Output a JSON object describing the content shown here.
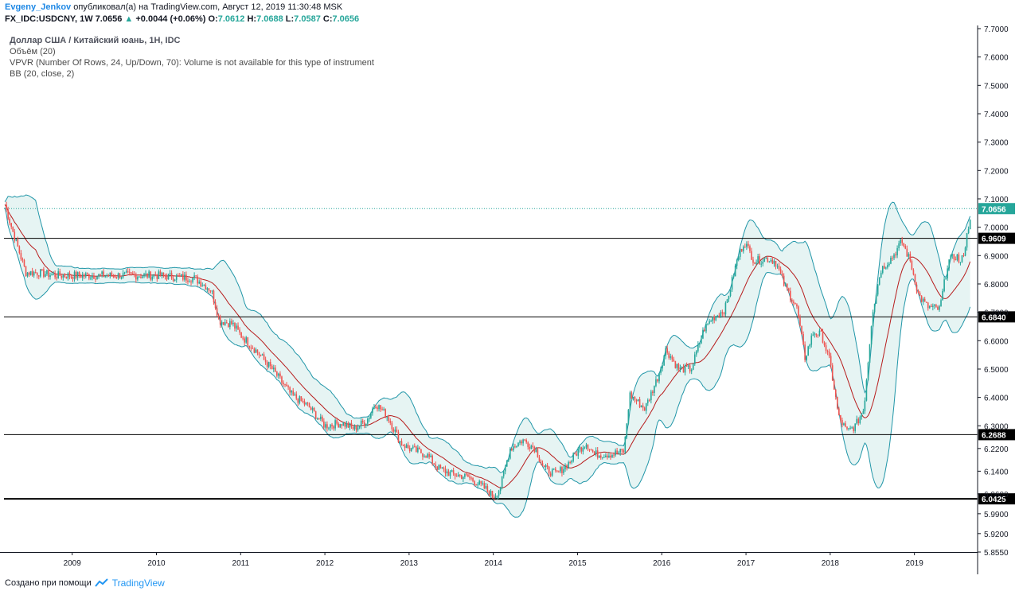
{
  "header": {
    "author": "Evgeny_Jenkov",
    "published_text": "опубликовал(а) на TradingView.com, Август 12, 2019 11:30:48 MSK",
    "symbol": "FX_IDC:USDCNY, 1W",
    "last": "7.0656",
    "change": "+0.0044 (+0.06%)",
    "o_label": "O:",
    "o": "7.0612",
    "h_label": "H:",
    "h": "7.0688",
    "l_label": "L:",
    "l": "7.0587",
    "c_label": "C:",
    "c": "7.0656"
  },
  "legend": {
    "title": "Доллар США / Китайский юань, 1H, IDC",
    "volume": "Объём (20)",
    "vpvr": "VPVR (Number Of Rows, 24, Up/Down, 70): Volume is not available for this type of instrument",
    "bb": "BB (20, close, 2)"
  },
  "footer": {
    "made_with": "Создано при помощи",
    "brand": "TradingView"
  },
  "colors": {
    "up": "#26a69a",
    "down": "#ef5350",
    "bb_band": "#2196a8",
    "basis": "#b71c1c",
    "fill": "#e6f4f3"
  },
  "chart_data": {
    "type": "candlestick",
    "y_axis_ticks": [
      "5.8550",
      "5.9200",
      "5.9900",
      "6.0600",
      "6.1400",
      "6.2200",
      "6.3000",
      "6.4000",
      "6.5000",
      "6.6000",
      "6.7000",
      "6.8000",
      "6.9000",
      "7.0000",
      "7.1000",
      "7.2000",
      "7.3000",
      "7.4000",
      "7.5000",
      "7.6000",
      "7.7000"
    ],
    "ylim": [
      5.855,
      7.7
    ],
    "x_ticks": [
      "2009",
      "2010",
      "2011",
      "2012",
      "2013",
      "2014",
      "2015",
      "2016",
      "2017",
      "2018",
      "2019"
    ],
    "xlim": [
      2008.19,
      2019.75
    ],
    "horizontal_levels": [
      {
        "value": 6.9609,
        "label": "6.9609"
      },
      {
        "value": 6.684,
        "label": "6.6840"
      },
      {
        "value": 6.2688,
        "label": "6.2688"
      },
      {
        "value": 6.0425,
        "label": "6.0425"
      }
    ],
    "last_price": {
      "value": 7.0656,
      "label": "7.0656"
    },
    "series": [
      {
        "name": "close",
        "points": [
          [
            2008.2,
            7.08
          ],
          [
            2008.3,
            6.98
          ],
          [
            2008.45,
            6.84
          ],
          [
            2008.6,
            6.84
          ],
          [
            2008.8,
            6.83
          ],
          [
            2009.0,
            6.83
          ],
          [
            2009.5,
            6.83
          ],
          [
            2010.0,
            6.83
          ],
          [
            2010.45,
            6.82
          ],
          [
            2010.65,
            6.78
          ],
          [
            2010.75,
            6.67
          ],
          [
            2010.9,
            6.66
          ],
          [
            2011.0,
            6.62
          ],
          [
            2011.2,
            6.56
          ],
          [
            2011.4,
            6.49
          ],
          [
            2011.6,
            6.41
          ],
          [
            2011.8,
            6.37
          ],
          [
            2012.0,
            6.3
          ],
          [
            2012.2,
            6.31
          ],
          [
            2012.35,
            6.29
          ],
          [
            2012.5,
            6.32
          ],
          [
            2012.6,
            6.38
          ],
          [
            2012.75,
            6.33
          ],
          [
            2012.9,
            6.24
          ],
          [
            2013.0,
            6.22
          ],
          [
            2013.2,
            6.2
          ],
          [
            2013.35,
            6.15
          ],
          [
            2013.5,
            6.13
          ],
          [
            2013.7,
            6.12
          ],
          [
            2013.9,
            6.08
          ],
          [
            2014.0,
            6.05
          ],
          [
            2014.08,
            6.08
          ],
          [
            2014.2,
            6.22
          ],
          [
            2014.35,
            6.25
          ],
          [
            2014.5,
            6.22
          ],
          [
            2014.6,
            6.15
          ],
          [
            2014.75,
            6.13
          ],
          [
            2014.9,
            6.17
          ],
          [
            2015.0,
            6.21
          ],
          [
            2015.1,
            6.24
          ],
          [
            2015.2,
            6.2
          ],
          [
            2015.4,
            6.2
          ],
          [
            2015.55,
            6.21
          ],
          [
            2015.62,
            6.41
          ],
          [
            2015.8,
            6.36
          ],
          [
            2015.95,
            6.47
          ],
          [
            2016.05,
            6.57
          ],
          [
            2016.2,
            6.5
          ],
          [
            2016.35,
            6.5
          ],
          [
            2016.5,
            6.64
          ],
          [
            2016.6,
            6.68
          ],
          [
            2016.75,
            6.71
          ],
          [
            2016.9,
            6.89
          ],
          [
            2016.98,
            6.95
          ],
          [
            2017.1,
            6.88
          ],
          [
            2017.25,
            6.89
          ],
          [
            2017.35,
            6.88
          ],
          [
            2017.45,
            6.8
          ],
          [
            2017.6,
            6.72
          ],
          [
            2017.7,
            6.54
          ],
          [
            2017.8,
            6.63
          ],
          [
            2017.9,
            6.62
          ],
          [
            2018.0,
            6.52
          ],
          [
            2018.1,
            6.33
          ],
          [
            2018.2,
            6.28
          ],
          [
            2018.3,
            6.3
          ],
          [
            2018.4,
            6.36
          ],
          [
            2018.5,
            6.7
          ],
          [
            2018.6,
            6.85
          ],
          [
            2018.75,
            6.9
          ],
          [
            2018.85,
            6.95
          ],
          [
            2018.95,
            6.88
          ],
          [
            2019.05,
            6.76
          ],
          [
            2019.15,
            6.72
          ],
          [
            2019.3,
            6.71
          ],
          [
            2019.4,
            6.88
          ],
          [
            2019.5,
            6.9
          ],
          [
            2019.55,
            6.87
          ],
          [
            2019.6,
            6.93
          ],
          [
            2019.68,
            7.07
          ]
        ]
      }
    ]
  }
}
